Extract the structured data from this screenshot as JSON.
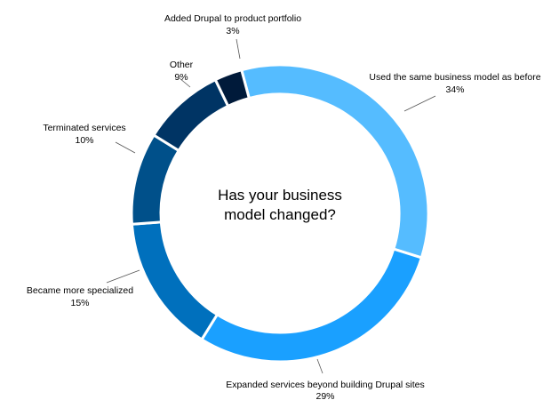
{
  "chart_data": {
    "type": "pie",
    "variant": "donut",
    "title": "Has your business model changed?",
    "slices": [
      {
        "label": "Used the same business model as before",
        "value": 34,
        "value_label": "34%",
        "color": "#55bcff"
      },
      {
        "label": "Expanded services beyond building Drupal sites",
        "value": 29,
        "value_label": "29%",
        "color": "#1aa0ff"
      },
      {
        "label": "Became more specialized",
        "value": 15,
        "value_label": "15%",
        "color": "#0070bd"
      },
      {
        "label": "Terminated services",
        "value": 10,
        "value_label": "10%",
        "color": "#00508a"
      },
      {
        "label": "Other",
        "value": 9,
        "value_label": "9%",
        "color": "#003464"
      },
      {
        "label": "Added Drupal to product portfolio",
        "value": 3,
        "value_label": "3%",
        "color": "#001a3a"
      }
    ]
  }
}
